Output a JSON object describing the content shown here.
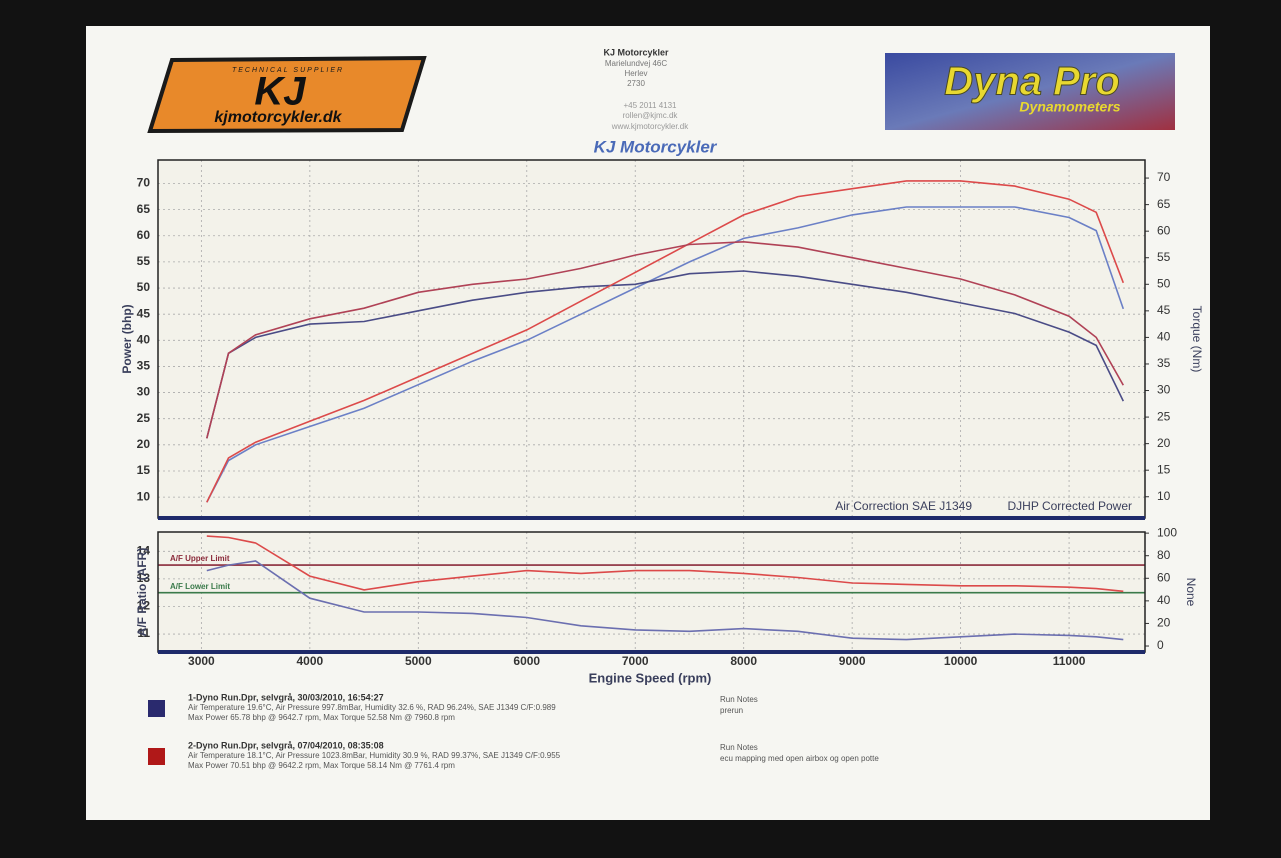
{
  "header": {
    "logo_tag": "TECHNICAL SUPPLIER",
    "logo_letters": "KJ",
    "logo_url": "kjmotorcykler.dk",
    "company": "KJ Motorcykler",
    "address": [
      "Marielundvej 46C",
      "Herlev",
      "2730"
    ],
    "contact": [
      "+45 2011 4131",
      "rollen@kjmc.dk",
      "www.kjmotorcykler.dk"
    ],
    "title": "KJ Motorcykler",
    "brand": "Dyna Pro",
    "brand_sub": "Dynamometers"
  },
  "chart_data": [
    {
      "type": "line",
      "ylabel": "Power (bhp)",
      "y2label": "Torque (Nm)",
      "annotations": [
        "Air Correction SAE J1349",
        "DJHP Corrected Power"
      ],
      "x": [
        3050,
        3250,
        3500,
        4000,
        4500,
        5000,
        5500,
        6000,
        6500,
        7000,
        7500,
        8000,
        8500,
        9000,
        9500,
        10000,
        10500,
        11000,
        11250,
        11500
      ],
      "xlim": [
        2600,
        11700
      ],
      "ylim": [
        6,
        74.5
      ],
      "yticks": [
        10,
        15,
        20,
        25,
        30,
        35,
        40,
        45,
        50,
        55,
        60,
        65,
        70
      ],
      "y2lim": [
        6,
        73.4
      ],
      "y2ticks": [
        10,
        15,
        20,
        25,
        30,
        35,
        40,
        45,
        50,
        55,
        60,
        65,
        70
      ],
      "grid": true,
      "series": [
        {
          "color": "#6b80c6",
          "values": [
            9,
            17,
            20,
            23.5,
            27,
            31.5,
            36,
            40,
            45,
            50,
            55,
            59.5,
            61.5,
            64,
            65.5,
            65.5,
            65.5,
            63.5,
            61,
            46
          ]
        },
        {
          "color": "#4a4c86",
          "axis": "y2",
          "values": [
            21,
            37,
            40,
            42.5,
            43,
            45,
            47,
            48.5,
            49.5,
            50,
            52,
            52.5,
            51.5,
            50,
            48.5,
            46.5,
            44.5,
            41,
            38.5,
            28
          ]
        },
        {
          "color": "#dc4a4a",
          "values": [
            9,
            17.5,
            20.5,
            24.5,
            28.5,
            33,
            37.5,
            42,
            47.5,
            53,
            58.5,
            64,
            67.5,
            69,
            70.5,
            70.5,
            69.5,
            67,
            64.5,
            51
          ]
        },
        {
          "color": "#b04256",
          "axis": "y2",
          "values": [
            21,
            37,
            40.5,
            43.5,
            45.5,
            48.5,
            50,
            51,
            53,
            55.5,
            57.5,
            58,
            57,
            55,
            53,
            51,
            48,
            44,
            40,
            31
          ]
        }
      ]
    },
    {
      "type": "line",
      "xlabel": "Engine Speed (rpm)",
      "ylabel": "A/F Ratio (AFR)",
      "y2label": "None",
      "x": [
        3050,
        3250,
        3500,
        4000,
        4500,
        5000,
        5500,
        6000,
        6500,
        7000,
        7500,
        8000,
        8500,
        9000,
        9500,
        10000,
        10500,
        11000,
        11250,
        11500
      ],
      "xlim": [
        2600,
        11700
      ],
      "xticks": [
        3000,
        4000,
        5000,
        6000,
        7000,
        8000,
        9000,
        10000,
        11000
      ],
      "ylim": [
        10.35,
        14.7
      ],
      "yticks": [
        11,
        12,
        13,
        14
      ],
      "y2lim": [
        -5.3,
        101
      ],
      "y2ticks": [
        0,
        20,
        40,
        60,
        80,
        100
      ],
      "grid": true,
      "reference_lines": [
        {
          "label": "A/F Upper Limit",
          "value": 13.5,
          "color": "#8a2a3a"
        },
        {
          "label": "A/F Lower Limit",
          "value": 12.5,
          "color": "#3a7a4a"
        }
      ],
      "series": [
        {
          "color": "#6b6fb0",
          "values": [
            13.3,
            13.5,
            13.65,
            12.3,
            11.8,
            11.8,
            11.75,
            11.6,
            11.3,
            11.15,
            11.1,
            11.2,
            11.1,
            10.85,
            10.8,
            10.9,
            11.0,
            10.95,
            10.9,
            10.8
          ]
        },
        {
          "color": "#dc4a4a",
          "values": [
            14.55,
            14.5,
            14.3,
            13.1,
            12.6,
            12.9,
            13.1,
            13.3,
            13.2,
            13.3,
            13.3,
            13.2,
            13.05,
            12.85,
            12.8,
            12.75,
            12.75,
            12.7,
            12.65,
            12.55
          ]
        }
      ]
    }
  ],
  "runs": [
    {
      "title": "1-Dyno Run.Dpr,  selvgrå,  30/03/2010,  16:54:27",
      "color": "#2a2a6e",
      "lines": [
        "Air Temperature 19.6°C, Air Pressure 997.8mBar, Humidity 32.6 %, RAD 96.24%,   SAE J1349  C/F:0.989",
        "Max Power 65.78 bhp @ 9642.7 rpm, Max Torque 52.58 Nm @ 7960.8 rpm"
      ],
      "notes_label": "Run Notes",
      "notes": "prerun"
    },
    {
      "title": "2-Dyno Run.Dpr,  selvgrå,  07/04/2010,  08:35:08",
      "color": "#b01818",
      "lines": [
        "Air Temperature 18.1°C, Air Pressure 1023.8mBar, Humidity 30.9 %, RAD 99.37%,   SAE J1349  C/F:0.955",
        "Max Power 70.51 bhp @ 9642.2 rpm, Max Torque 58.14 Nm @ 7761.4 rpm"
      ],
      "notes_label": "Run Notes",
      "notes": "ecu mapping med open airbox og open potte"
    }
  ]
}
